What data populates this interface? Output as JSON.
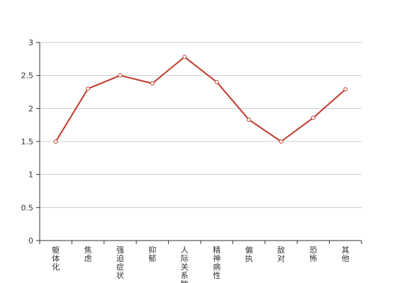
{
  "chart_data": {
    "type": "line",
    "title": "",
    "xlabel": "",
    "ylabel": "",
    "categories": [
      "躯体化",
      "焦虑",
      "强迫症状",
      "抑郁",
      "人际关系敏感",
      "精神病性",
      "偏执",
      "敌对",
      "恐怖",
      "其他"
    ],
    "series": [
      {
        "values": [
          1.5,
          2.3,
          2.5,
          2.38,
          2.78,
          2.4,
          1.83,
          1.5,
          1.86,
          2.29
        ]
      }
    ],
    "ylim": [
      0,
      3
    ],
    "yticks": [
      0,
      0.5,
      1,
      1.5,
      2,
      2.5,
      3
    ],
    "ytick_labels": [
      "0",
      "0.5",
      "1",
      "1.5",
      "2",
      "2.5",
      "3"
    ],
    "grid": true,
    "legend": "none",
    "colors": {
      "line": "#c0392b",
      "grid": "#cccccc",
      "axis": "#333333",
      "marker_fill": "#ffffff"
    }
  }
}
